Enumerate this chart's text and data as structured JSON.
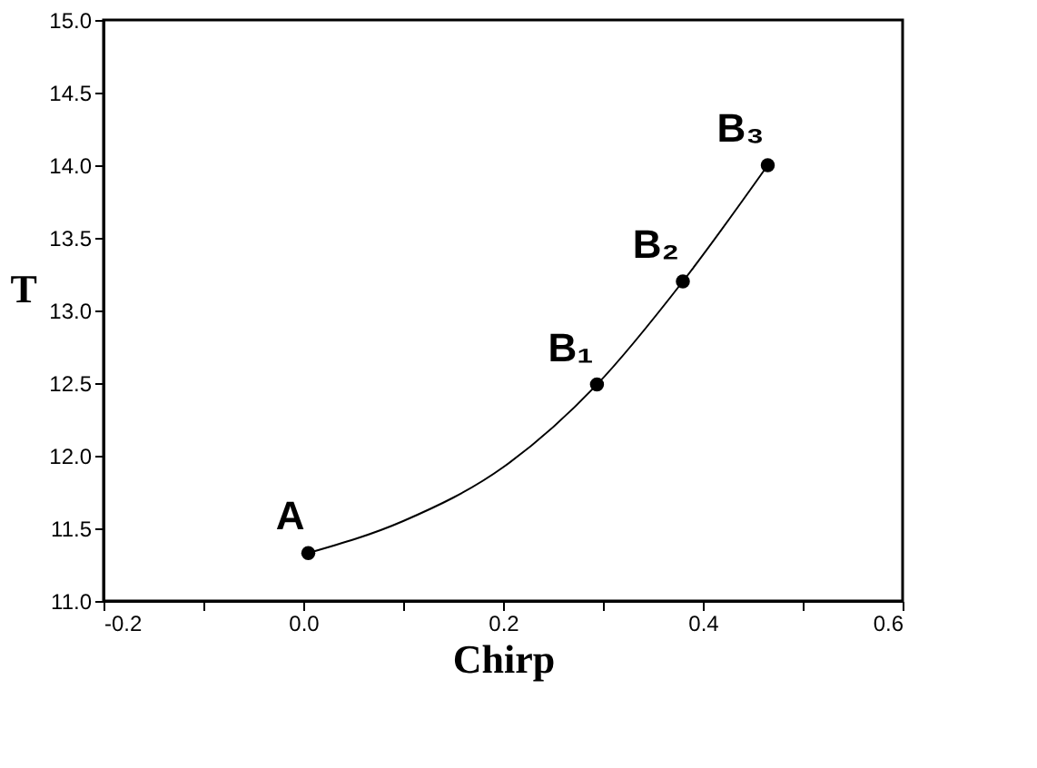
{
  "chart_data": {
    "type": "line",
    "xlabel": "Chirp",
    "ylabel": "T",
    "series": [
      {
        "color": "#000000",
        "marker": "none",
        "line_style": "solid",
        "x": [
          0.005,
          0.1,
          0.2,
          0.294,
          0.38,
          0.465
        ],
        "values": [
          11.33,
          11.55,
          11.92,
          12.49,
          13.2,
          14.0
        ]
      },
      {
        "type": "scatter",
        "color": "#000000",
        "marker": "circle",
        "x": [
          0.005,
          0.294,
          0.38,
          0.465
        ],
        "values": [
          11.33,
          12.49,
          13.2,
          14.0
        ]
      }
    ],
    "annotations": [
      {
        "text": "A",
        "x": 0.005,
        "y": 11.33
      },
      {
        "text": "B₁",
        "x": 0.294,
        "y": 12.49
      },
      {
        "text": "B₂",
        "x": 0.38,
        "y": 13.2
      },
      {
        "text": "B₃",
        "x": 0.465,
        "y": 14.0
      }
    ],
    "xlim": [
      -0.2,
      0.6
    ],
    "xticks": [
      {
        "value": -0.2,
        "label": "-0.2"
      },
      {
        "value": -0.1,
        "label": null
      },
      {
        "value": 0,
        "label": "0.0"
      },
      {
        "value": 0.1,
        "label": null
      },
      {
        "value": 0.2,
        "label": "0.2"
      },
      {
        "value": 0.3,
        "label": null
      },
      {
        "value": 0.4,
        "label": "0.4"
      },
      {
        "value": 0.5,
        "label": null
      },
      {
        "value": 0.6,
        "label": "0.6"
      }
    ],
    "ylim": [
      11.0,
      15.0
    ],
    "yticks": [
      {
        "value": 11.0,
        "label": "11.0"
      },
      {
        "value": 11.5,
        "label": "11.5"
      },
      {
        "value": 12.0,
        "label": "12.0"
      },
      {
        "value": 12.5,
        "label": "12.5"
      },
      {
        "value": 13.0,
        "label": "13.0"
      },
      {
        "value": 13.5,
        "label": "13.5"
      },
      {
        "value": 14.0,
        "label": "14.0"
      },
      {
        "value": 14.5,
        "label": "14.5"
      },
      {
        "value": 15.0,
        "label": "15.0"
      }
    ],
    "grid": false
  }
}
